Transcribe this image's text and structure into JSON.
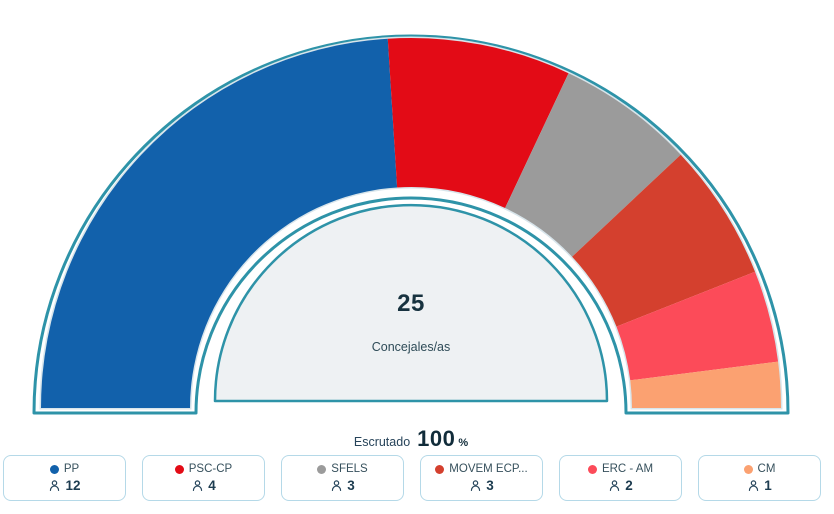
{
  "chart_data": {
    "type": "half-donut-gauge",
    "title": "Concejales/as",
    "center_value": "25",
    "center_label": "Concejales/as",
    "total_seats": 25,
    "series": [
      {
        "name": "PP",
        "seats": 12,
        "color": "#1261ab"
      },
      {
        "name": "PSC-CP",
        "seats": 4,
        "color": "#e30b16"
      },
      {
        "name": "SFELS",
        "seats": 3,
        "color": "#9b9b9b"
      },
      {
        "name": "MOVEM ECP...",
        "seats": 3,
        "color": "#d4402e"
      },
      {
        "name": "ERC - AM",
        "seats": 2,
        "color": "#fc4b59"
      },
      {
        "name": "CM",
        "seats": 1,
        "color": "#fba171"
      }
    ],
    "layout": {
      "start_angle_deg": 180,
      "end_angle_deg": 0,
      "outline_color": "#2e93a8",
      "halo_color": "#d8e5eb",
      "center_fill": "#eef1f3",
      "legend_position": "bottom"
    }
  },
  "scrutiny": {
    "label": "Escrutado",
    "value": "100",
    "unit": "%"
  },
  "icons": {
    "person": "person-outline"
  }
}
